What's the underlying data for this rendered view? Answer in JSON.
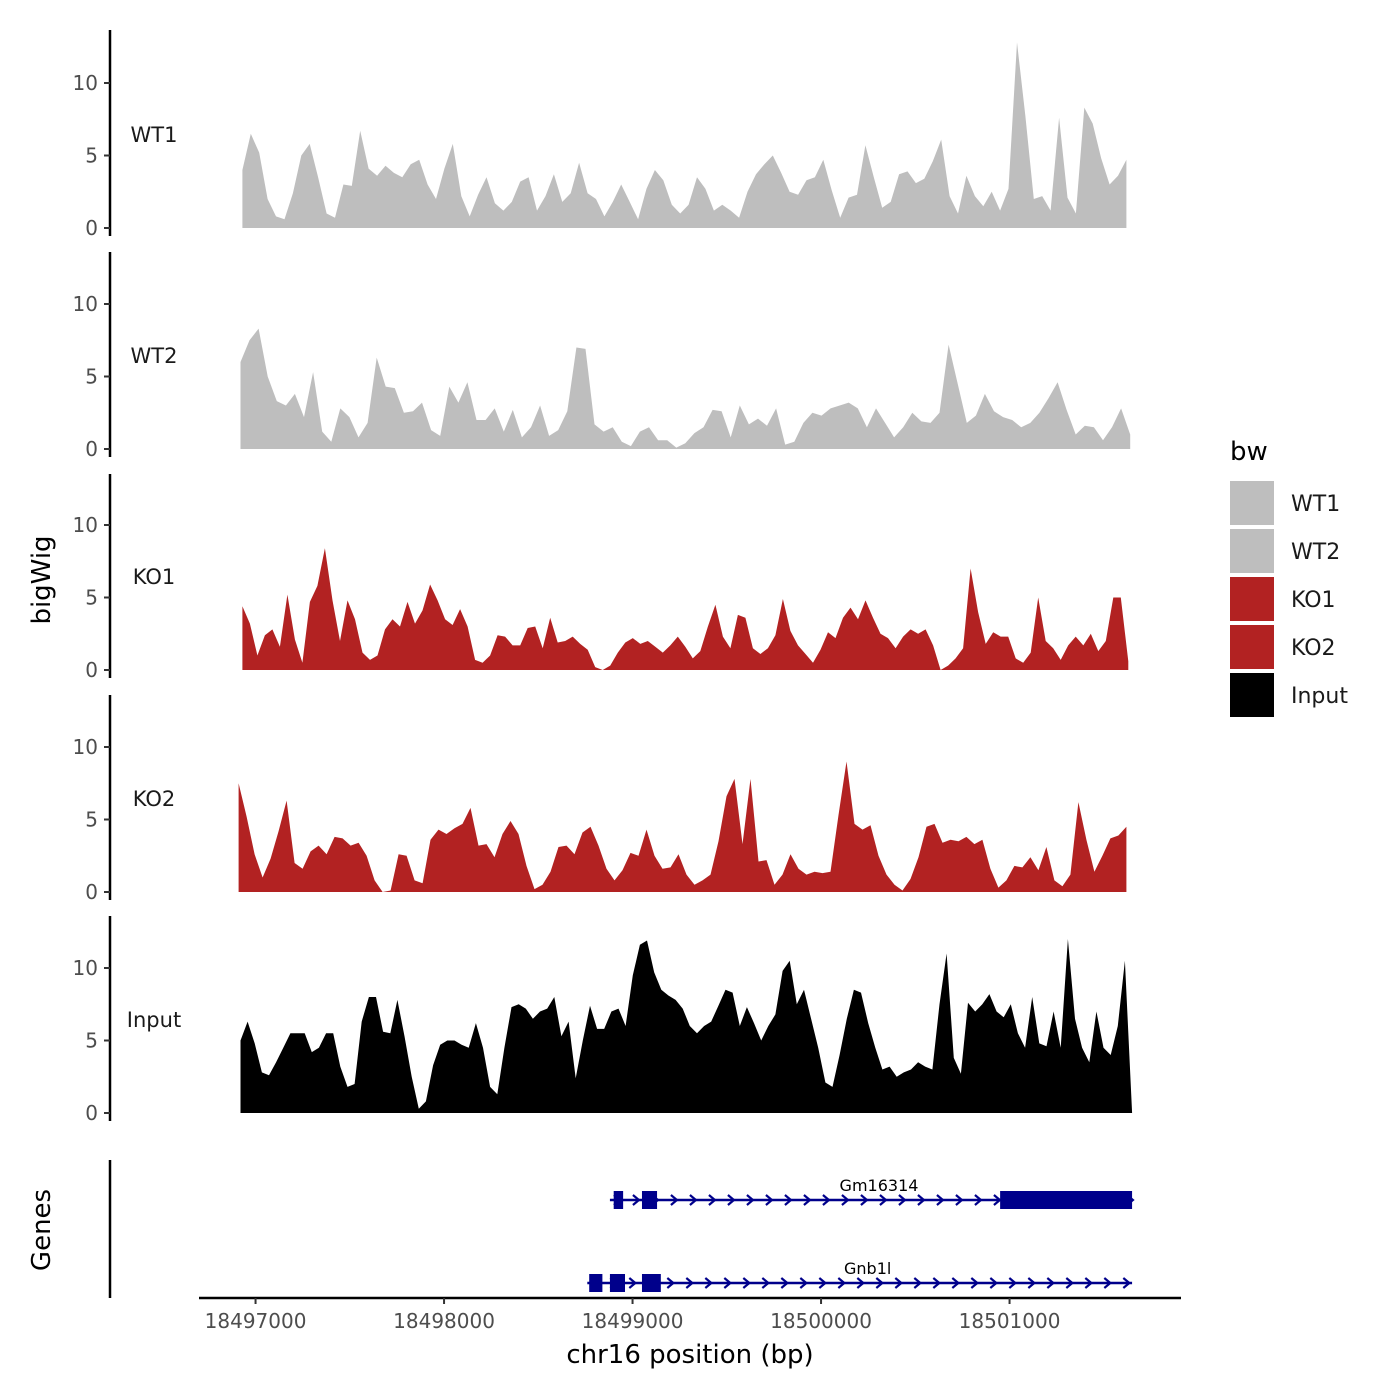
{
  "chart_data": {
    "type": "area",
    "title": "",
    "xlabel": "chr16 position (bp)",
    "ylabel": "bigWig",
    "xlim": [
      18496650,
      18501900
    ],
    "ylim": [
      0,
      13.5
    ],
    "y_ticks": [
      0,
      5,
      10
    ],
    "x_ticks": [
      {
        "value": 18497000,
        "label": "18497000"
      },
      {
        "value": 18498000,
        "label": "18498000"
      },
      {
        "value": 18499000,
        "label": "18499000"
      },
      {
        "value": 18500000,
        "label": "18500000"
      },
      {
        "value": 18501000,
        "label": "18501000"
      }
    ],
    "series": [
      {
        "name": "WT1",
        "color": "#bebebe",
        "x_start": 18496930,
        "x_end": 18501620,
        "values": [
          4.0,
          6.5,
          5.2,
          2.0,
          0.8,
          0.6,
          2.4,
          5.0,
          5.8,
          3.5,
          1.0,
          0.7,
          3.0,
          2.9,
          6.7,
          4.1,
          3.6,
          4.3,
          3.8,
          3.5,
          4.4,
          4.7,
          3.0,
          2.0,
          4.1,
          5.8,
          2.2,
          0.8,
          2.3,
          3.5,
          1.7,
          1.2,
          1.8,
          3.2,
          3.5,
          1.2,
          2.2,
          3.7,
          1.8,
          2.4,
          4.5,
          2.4,
          2.0,
          0.8,
          1.8,
          3.0,
          1.8,
          0.6,
          2.7,
          4.0,
          3.3,
          1.6,
          1.0,
          1.6,
          3.5,
          2.7,
          1.2,
          1.6,
          1.2,
          0.7,
          2.5,
          3.7,
          4.4,
          5.0,
          3.8,
          2.5,
          2.3,
          3.3,
          3.5,
          4.7,
          2.6,
          0.7,
          2.1,
          2.3,
          5.7,
          3.5,
          1.4,
          1.8,
          3.7,
          3.9,
          3.1,
          3.4,
          4.6,
          6.1,
          2.2,
          1.0,
          3.6,
          2.2,
          1.5,
          2.5,
          1.2,
          2.7,
          12.8,
          7.7,
          2.0,
          2.2,
          1.2,
          7.6,
          2.1,
          1.0,
          8.3,
          7.2,
          4.8,
          3.0,
          3.6,
          4.7
        ]
      },
      {
        "name": "WT2",
        "color": "#bebebe",
        "x_start": 18496920,
        "x_end": 18501640,
        "values": [
          6.0,
          7.5,
          8.3,
          5.0,
          3.3,
          3.0,
          3.8,
          2.2,
          5.3,
          1.2,
          0.5,
          2.8,
          2.2,
          0.8,
          1.8,
          6.3,
          4.3,
          4.2,
          2.5,
          2.6,
          3.2,
          1.3,
          0.9,
          4.3,
          3.2,
          4.6,
          2.0,
          2.0,
          2.8,
          1.2,
          2.7,
          0.8,
          1.5,
          3.0,
          0.9,
          1.3,
          2.6,
          7.0,
          6.9,
          1.7,
          1.2,
          1.5,
          0.5,
          0.2,
          1.2,
          1.5,
          0.6,
          0.6,
          0.1,
          0.4,
          1.1,
          1.5,
          2.7,
          2.6,
          0.8,
          3.0,
          1.7,
          2.1,
          1.6,
          2.8,
          0.3,
          0.5,
          1.8,
          2.5,
          2.3,
          2.8,
          3.0,
          3.2,
          2.8,
          1.5,
          2.8,
          1.8,
          0.8,
          1.5,
          2.5,
          1.9,
          1.8,
          2.5,
          7.2,
          4.5,
          1.8,
          2.3,
          3.8,
          2.6,
          2.2,
          2.0,
          1.5,
          1.8,
          2.5,
          3.5,
          4.6,
          2.7,
          1.0,
          1.6,
          1.5,
          0.6,
          1.5,
          2.8,
          1.0
        ]
      },
      {
        "name": "KO1",
        "color": "#b22222",
        "x_start": 18496930,
        "x_end": 18501630,
        "values": [
          4.4,
          3.2,
          1.0,
          2.4,
          2.8,
          1.6,
          5.2,
          2.1,
          0.5,
          4.7,
          5.8,
          8.4,
          4.8,
          2.0,
          4.8,
          3.5,
          1.2,
          0.7,
          1.0,
          2.8,
          3.5,
          3.0,
          4.7,
          3.2,
          4.1,
          5.9,
          4.8,
          3.5,
          3.1,
          4.2,
          3.0,
          0.7,
          0.5,
          1.0,
          2.4,
          2.3,
          1.7,
          1.7,
          2.9,
          3.0,
          1.5,
          3.6,
          1.9,
          2.0,
          2.3,
          1.8,
          1.4,
          0.2,
          0.0,
          0.3,
          1.2,
          1.9,
          2.2,
          1.8,
          2.0,
          1.6,
          1.2,
          1.7,
          2.3,
          1.6,
          0.8,
          1.3,
          3.0,
          4.5,
          2.3,
          1.5,
          3.8,
          3.6,
          1.5,
          1.1,
          1.5,
          2.4,
          4.9,
          2.7,
          1.7,
          1.1,
          0.5,
          1.4,
          2.6,
          2.2,
          3.6,
          4.3,
          3.5,
          4.8,
          3.6,
          2.5,
          2.2,
          1.5,
          2.3,
          2.8,
          2.5,
          2.8,
          1.7,
          0.0,
          0.3,
          0.8,
          1.5,
          7.0,
          4.0,
          1.8,
          2.6,
          2.3,
          2.3,
          0.8,
          0.5,
          1.2,
          5.0,
          2.0,
          1.5,
          0.7,
          1.7,
          2.3,
          1.7,
          2.5,
          1.3,
          2.0,
          5.0,
          5.0,
          0.6
        ]
      },
      {
        "name": "KO2",
        "color": "#b22222",
        "x_start": 18496910,
        "x_end": 18501620,
        "values": [
          7.5,
          5.2,
          2.6,
          1.0,
          2.3,
          4.2,
          6.3,
          2.0,
          1.6,
          2.8,
          3.2,
          2.6,
          3.8,
          3.7,
          3.2,
          3.4,
          2.5,
          0.8,
          0.0,
          0.1,
          2.6,
          2.5,
          0.8,
          0.6,
          3.6,
          4.3,
          4.0,
          4.4,
          4.7,
          5.8,
          3.2,
          3.3,
          2.4,
          4.0,
          4.9,
          4.0,
          1.8,
          0.2,
          0.5,
          1.4,
          3.1,
          3.2,
          2.6,
          4.1,
          4.5,
          3.2,
          1.6,
          0.8,
          1.5,
          2.7,
          2.5,
          4.3,
          2.5,
          1.6,
          1.7,
          2.6,
          1.2,
          0.5,
          0.8,
          1.2,
          3.5,
          6.6,
          7.8,
          3.3,
          7.8,
          2.1,
          2.2,
          0.5,
          1.2,
          2.6,
          1.6,
          1.2,
          1.4,
          1.3,
          1.4,
          5.3,
          9.0,
          4.7,
          4.3,
          4.6,
          2.5,
          1.2,
          0.5,
          0.1,
          0.9,
          2.4,
          4.5,
          4.7,
          3.4,
          3.6,
          3.5,
          3.8,
          3.3,
          3.6,
          1.6,
          0.3,
          0.8,
          1.8,
          1.7,
          2.4,
          1.5,
          3.1,
          0.8,
          0.4,
          1.2,
          6.2,
          3.6,
          1.4,
          2.5,
          3.7,
          3.9,
          4.5
        ]
      },
      {
        "name": "Input",
        "color": "#000000",
        "x_start": 18496920,
        "x_end": 18501650,
        "values": [
          5.0,
          6.3,
          4.8,
          2.8,
          2.6,
          3.5,
          4.5,
          5.5,
          5.5,
          5.5,
          4.2,
          4.5,
          5.5,
          5.5,
          3.2,
          1.8,
          2.0,
          6.3,
          8.0,
          8.0,
          5.6,
          5.5,
          7.8,
          5.3,
          2.5,
          0.3,
          0.8,
          3.3,
          4.7,
          5.0,
          5.0,
          4.7,
          4.5,
          6.2,
          4.5,
          1.8,
          1.3,
          4.5,
          7.3,
          7.5,
          7.2,
          6.5,
          7.0,
          7.2,
          8.0,
          5.3,
          6.3,
          2.4,
          5.0,
          7.4,
          5.8,
          5.8,
          7.0,
          7.2,
          6.0,
          9.5,
          11.6,
          11.9,
          9.7,
          8.5,
          8.1,
          7.8,
          7.2,
          6.0,
          5.5,
          6.0,
          6.3,
          7.4,
          8.5,
          8.3,
          6.0,
          7.3,
          6.2,
          5.0,
          6.0,
          6.8,
          9.8,
          10.5,
          7.5,
          8.5,
          6.5,
          4.5,
          2.1,
          1.8,
          4.0,
          6.5,
          8.5,
          8.3,
          6.2,
          4.5,
          3.0,
          3.2,
          2.5,
          2.8,
          3.0,
          3.5,
          3.2,
          3.0,
          7.5,
          11.0,
          3.8,
          2.7,
          7.6,
          7.0,
          7.5,
          8.2,
          7.0,
          6.6,
          7.5,
          5.5,
          4.5,
          8.0,
          4.8,
          4.6,
          7.0,
          4.5,
          12.0,
          6.5,
          4.5,
          3.5,
          7.0,
          4.5,
          4.0,
          6.0,
          10.5,
          0.0
        ]
      }
    ],
    "genes_label": "Genes",
    "genes": [
      {
        "name": "Gm16314",
        "color": "#00008b",
        "start": 18498880,
        "end": 18501650,
        "exons": [
          [
            18498900,
            18498950
          ],
          [
            18499050,
            18499130
          ],
          [
            18500950,
            18501650
          ]
        ]
      },
      {
        "name": "Gnb1l",
        "color": "#00008b",
        "start": 18498760,
        "end": 18501650,
        "exons": [
          [
            18498770,
            18498840
          ],
          [
            18498880,
            18498960
          ],
          [
            18499050,
            18499150
          ]
        ]
      }
    ],
    "legend": {
      "title": "bw",
      "position": "right",
      "items": [
        {
          "label": "WT1",
          "color": "#bebebe"
        },
        {
          "label": "WT2",
          "color": "#bebebe"
        },
        {
          "label": "KO1",
          "color": "#b22222"
        },
        {
          "label": "KO2",
          "color": "#b22222"
        },
        {
          "label": "Input",
          "color": "#000000"
        }
      ]
    }
  }
}
